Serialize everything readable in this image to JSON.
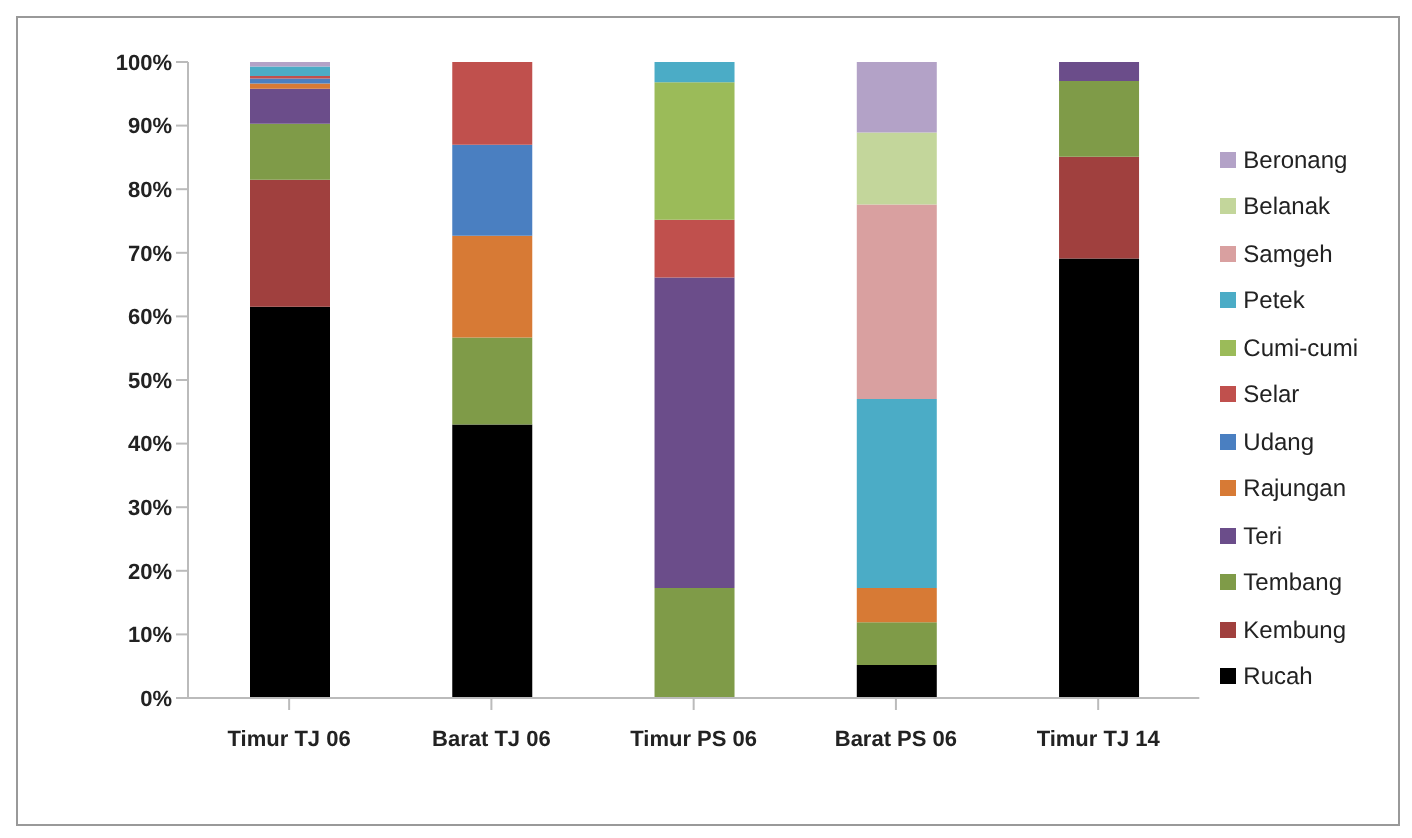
{
  "chart_data": {
    "type": "bar",
    "stacked": true,
    "categories": [
      "Timur TJ 06",
      "Barat TJ 06",
      "Timur PS 06",
      "Barat PS 06",
      "Timur TJ 14"
    ],
    "series": [
      {
        "name": "Rucah",
        "color": "#000000",
        "values": [
          61.5,
          43,
          0,
          5.2,
          69.1
        ]
      },
      {
        "name": "Kembung",
        "color": "#a0403e",
        "values": [
          20,
          0,
          0,
          0,
          16
        ]
      },
      {
        "name": "Tembang",
        "color": "#7f9b48",
        "values": [
          8.8,
          13.7,
          17.3,
          6.7,
          11.9
        ]
      },
      {
        "name": "Teri",
        "color": "#6b4d8a",
        "values": [
          5.5,
          0,
          48.8,
          0,
          3
        ]
      },
      {
        "name": "Rajungan",
        "color": "#d77a35",
        "values": [
          0.8,
          16,
          0,
          5.4,
          0
        ]
      },
      {
        "name": "Udang",
        "color": "#4a7fc1",
        "values": [
          0.8,
          14.3,
          0,
          0,
          0
        ]
      },
      {
        "name": "Selar",
        "color": "#c0504d",
        "values": [
          0.4,
          13,
          9.1,
          0,
          0
        ]
      },
      {
        "name": "Cumi-cumi",
        "color": "#9bbb59",
        "values": [
          0,
          0,
          21.6,
          0,
          0
        ]
      },
      {
        "name": "Petek",
        "color": "#4bacc6",
        "values": [
          1.5,
          0,
          3.2,
          29.7,
          0
        ]
      },
      {
        "name": "Samgeh",
        "color": "#d9a0a0",
        "values": [
          0,
          0,
          0,
          30.6,
          0
        ]
      },
      {
        "name": "Belanak",
        "color": "#c3d69b",
        "values": [
          0,
          0,
          0,
          11.3,
          0
        ]
      },
      {
        "name": "Beronang",
        "color": "#b3a2c7",
        "values": [
          0.7,
          0,
          0,
          11.1,
          0
        ]
      }
    ],
    "ylim": [
      0,
      100
    ],
    "yticks": [
      {
        "value": 0,
        "label": "0%"
      },
      {
        "value": 10,
        "label": "10%"
      },
      {
        "value": 20,
        "label": "20%"
      },
      {
        "value": 30,
        "label": "30%"
      },
      {
        "value": 40,
        "label": "40%"
      },
      {
        "value": 50,
        "label": "50%"
      },
      {
        "value": 60,
        "label": "60%"
      },
      {
        "value": 70,
        "label": "70%"
      },
      {
        "value": 80,
        "label": "80%"
      },
      {
        "value": 90,
        "label": "90%"
      },
      {
        "value": 100,
        "label": "100%"
      }
    ],
    "grid": false,
    "legend": "right"
  }
}
